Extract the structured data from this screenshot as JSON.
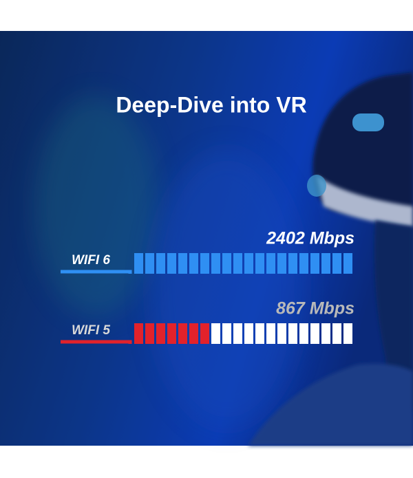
{
  "chart_data": {
    "type": "bar",
    "title": "Deep-Dive into VR",
    "categories": [
      "WIFI 6",
      "WIFI 5"
    ],
    "values": [
      2402,
      867
    ],
    "value_labels": [
      "2402 Mbps",
      "867 Mbps"
    ],
    "colors": [
      "#2f8ff3",
      "#e2222b"
    ]
  }
}
